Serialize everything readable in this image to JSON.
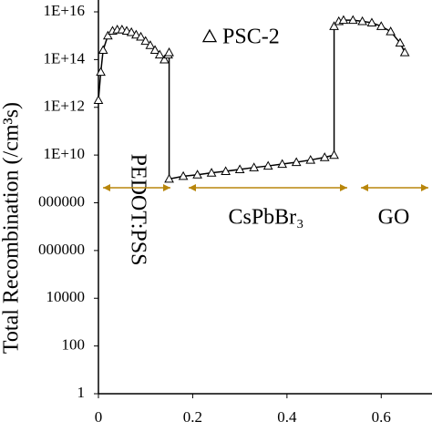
{
  "chart_data": {
    "type": "line",
    "y_label": "Total Recombination (/cm³s)",
    "x": [
      0,
      0.005,
      0.01,
      0.02,
      0.03,
      0.04,
      0.05,
      0.06,
      0.07,
      0.08,
      0.09,
      0.1,
      0.11,
      0.12,
      0.13,
      0.14,
      0.148,
      0.15,
      0.15,
      0.18,
      0.21,
      0.24,
      0.27,
      0.3,
      0.33,
      0.36,
      0.39,
      0.42,
      0.45,
      0.48,
      0.5,
      0.5,
      0.51,
      0.52,
      0.54,
      0.56,
      0.58,
      0.6,
      0.62,
      0.64,
      0.65
    ],
    "series": [
      {
        "name": "PSC-2",
        "color": "#000000",
        "values": [
          2000000000000.0,
          30000000000000.0,
          250000000000000.0,
          1000000000000000.0,
          1600000000000000.0,
          1800000000000000.0,
          1800000000000000.0,
          1600000000000000.0,
          1400000000000000.0,
          1100000000000000.0,
          900000000000000.0,
          600000000000000.0,
          400000000000000.0,
          250000000000000.0,
          160000000000000.0,
          100000000000000.0,
          160000000000000.0,
          200000000000000.0,
          1000000000.0,
          1300000000.0,
          1500000000.0,
          1800000000.0,
          2100000000.0,
          2500000000.0,
          3000000000.0,
          3500000000.0,
          4200000000.0,
          5000000000.0,
          6200000000.0,
          8000000000.0,
          10000000000.0,
          2500000000000000.0,
          4000000000000000.0,
          4500000000000000.0,
          4500000000000000.0,
          4000000000000000.0,
          3500000000000000.0,
          2500000000000000.0,
          1500000000000000.0,
          500000000000000.0,
          200000000000000.0
        ]
      }
    ],
    "xlim": [
      0,
      0.7
    ],
    "xticks": [
      0,
      0.2,
      0.4,
      0.6
    ],
    "ylim": [
      1,
      1e+16
    ],
    "log_y": true,
    "yticks": [
      1,
      100,
      10000,
      {
        "value": 1000000,
        "label": "000000"
      },
      {
        "value": 100000000,
        "label": "000000"
      },
      {
        "value": 10000000000,
        "label": "1E+10"
      },
      {
        "value": 1000000000000,
        "label": "1E+12"
      },
      {
        "value": 100000000000000,
        "label": "1E+14"
      },
      {
        "value": 10000000000000000,
        "label": "1E+16"
      }
    ],
    "annotations": [
      "PEDOT:PSS",
      "CsPbBr₃",
      "GO"
    ],
    "arrow_color": "#b8860b"
  }
}
